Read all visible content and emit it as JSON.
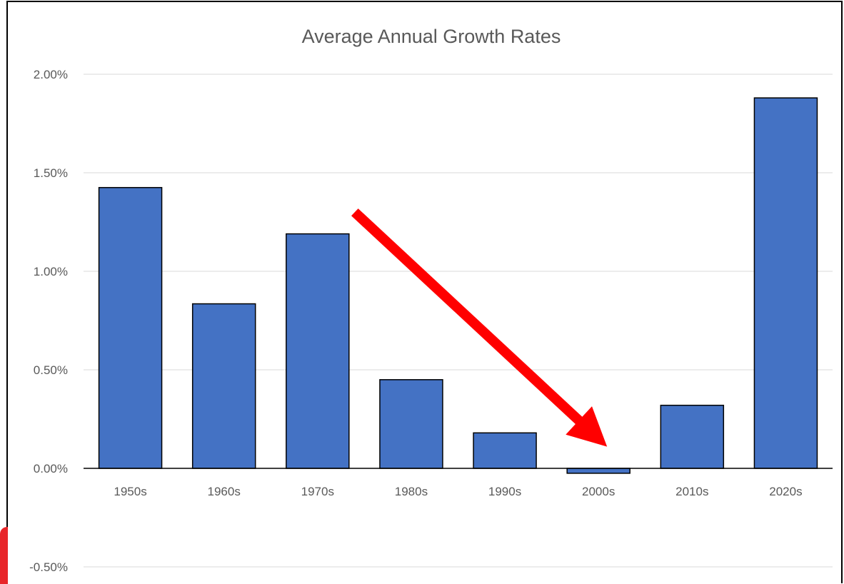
{
  "chart_data": {
    "type": "bar",
    "title": "Average Annual Growth Rates",
    "xlabel": "",
    "ylabel": "",
    "categories": [
      "1950s",
      "1960s",
      "1970s",
      "1980s",
      "1990s",
      "2000s",
      "2010s",
      "2020s"
    ],
    "series": [
      {
        "values": [
          1.425,
          0.835,
          1.19,
          0.45,
          0.18,
          -0.025,
          0.32,
          1.88
        ]
      }
    ],
    "value_unit": "%",
    "ylim": [
      -0.5,
      2.0
    ],
    "y_ticks": [
      2.0,
      1.5,
      1.0,
      0.5,
      0.0,
      -0.5
    ],
    "y_tick_labels": [
      "2.00%",
      "1.50%",
      "1.00%",
      "0.50%",
      "0.00%",
      "-0.50%"
    ],
    "grid": "horizontal",
    "legend": "none",
    "annotations": [
      {
        "type": "arrow",
        "description": "red arrow pointing down from the 1970s bar toward the 2000s bar",
        "from": {
          "category": "1970s",
          "value": 1.3
        },
        "to": {
          "category": "2000s",
          "value": 0.11
        }
      }
    ],
    "colors": {
      "bar_fill": "#4472C4",
      "bar_stroke": "#000000",
      "gridline": "#D9D9D9",
      "axis_line": "#000000",
      "text": "#595959",
      "arrow": "#FF0000",
      "corner_accent": "#E8262A"
    }
  }
}
